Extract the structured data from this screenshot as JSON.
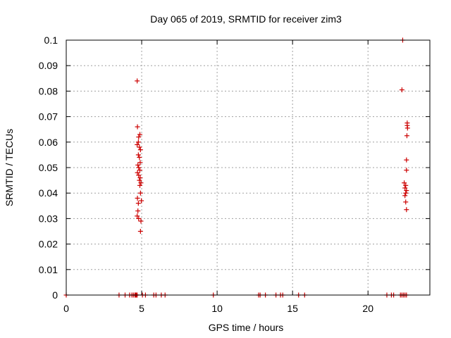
{
  "chart_data": {
    "type": "scatter",
    "title": "Day 065 of 2019, SRMTID for receiver zim3",
    "xlabel": "GPS time / hours",
    "ylabel": "SRMTID / TECUs",
    "xlim": [
      0,
      24.1
    ],
    "ylim": [
      0,
      0.1
    ],
    "grid": true,
    "marker": "+",
    "color": "#cc0000",
    "x_ticks": [
      0,
      5,
      10,
      15,
      20
    ],
    "x_tick_labels": [
      "0",
      "5",
      "10",
      "15",
      "20"
    ],
    "y_ticks": [
      0,
      0.01,
      0.02,
      0.03,
      0.04,
      0.05,
      0.06,
      0.07,
      0.08,
      0.09,
      0.1
    ],
    "y_tick_labels": [
      "0",
      "0.01",
      "0.02",
      "0.03",
      "0.04",
      "0.05",
      "0.06",
      "0.07",
      "0.08",
      "0.09",
      "0.1"
    ],
    "series": [
      {
        "name": "SRMTID",
        "points": [
          [
            0.0,
            0
          ],
          [
            3.5,
            0
          ],
          [
            3.9,
            0
          ],
          [
            4.2,
            0
          ],
          [
            4.35,
            0
          ],
          [
            4.45,
            0
          ],
          [
            4.55,
            0
          ],
          [
            4.6,
            0
          ],
          [
            4.65,
            0
          ],
          [
            4.7,
            0
          ],
          [
            5.05,
            0
          ],
          [
            5.25,
            0
          ],
          [
            5.8,
            0
          ],
          [
            5.95,
            0
          ],
          [
            6.3,
            0
          ],
          [
            6.55,
            0
          ],
          [
            9.75,
            0
          ],
          [
            12.75,
            0
          ],
          [
            12.85,
            0
          ],
          [
            13.2,
            0
          ],
          [
            13.9,
            0
          ],
          [
            14.2,
            0
          ],
          [
            14.35,
            0
          ],
          [
            15.4,
            0
          ],
          [
            15.8,
            0
          ],
          [
            21.25,
            0
          ],
          [
            21.55,
            0
          ],
          [
            21.7,
            0
          ],
          [
            22.15,
            0
          ],
          [
            22.25,
            0
          ],
          [
            22.35,
            0
          ],
          [
            22.45,
            0
          ],
          [
            22.55,
            0
          ],
          [
            4.7,
            0.084
          ],
          [
            4.72,
            0.066
          ],
          [
            4.88,
            0.063
          ],
          [
            4.8,
            0.062
          ],
          [
            4.78,
            0.06
          ],
          [
            4.7,
            0.059
          ],
          [
            4.85,
            0.058
          ],
          [
            4.92,
            0.057
          ],
          [
            4.78,
            0.055
          ],
          [
            4.85,
            0.054
          ],
          [
            4.9,
            0.052
          ],
          [
            4.75,
            0.051
          ],
          [
            4.8,
            0.05
          ],
          [
            4.88,
            0.049
          ],
          [
            4.72,
            0.048
          ],
          [
            4.8,
            0.047
          ],
          [
            4.9,
            0.046
          ],
          [
            4.85,
            0.045
          ],
          [
            4.95,
            0.044
          ],
          [
            4.88,
            0.043
          ],
          [
            4.92,
            0.04
          ],
          [
            4.72,
            0.038
          ],
          [
            4.98,
            0.037
          ],
          [
            4.78,
            0.036
          ],
          [
            4.75,
            0.033
          ],
          [
            4.7,
            0.031
          ],
          [
            4.8,
            0.03
          ],
          [
            4.95,
            0.029
          ],
          [
            4.92,
            0.025
          ],
          [
            22.3,
            0.1
          ],
          [
            22.25,
            0.0805
          ],
          [
            22.6,
            0.0675
          ],
          [
            22.6,
            0.0665
          ],
          [
            22.62,
            0.0655
          ],
          [
            22.58,
            0.0625
          ],
          [
            22.55,
            0.053
          ],
          [
            22.55,
            0.049
          ],
          [
            22.4,
            0.044
          ],
          [
            22.5,
            0.043
          ],
          [
            22.45,
            0.042
          ],
          [
            22.55,
            0.041
          ],
          [
            22.5,
            0.04
          ],
          [
            22.45,
            0.039
          ],
          [
            22.5,
            0.0365
          ],
          [
            22.55,
            0.0335
          ]
        ]
      }
    ]
  }
}
